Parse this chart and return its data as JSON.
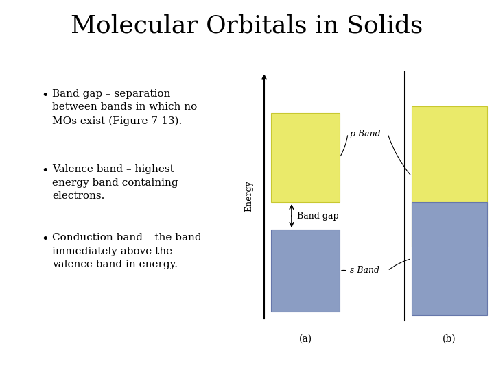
{
  "title": "Molecular Orbitals in Solids",
  "title_fontsize": 26,
  "bg_color": "#ffffff",
  "bullet_points": [
    "Band gap – separation\nbetween bands in which no\nMOs exist (Figure 7-13).",
    "Valence band – highest\nenergy band containing\nelectrons.",
    "Conduction band – the band\nimmediately above the\nvalence band in energy."
  ],
  "bullet_fontsize": 11,
  "s_band_color": "#8b9dc3",
  "p_band_color": "#eaea6a",
  "a_label": "(a)",
  "b_label": "(b)",
  "p_band_label": "p Band",
  "s_band_label": "s Band",
  "band_gap_label": "Band gap",
  "energy_label": "Energy"
}
